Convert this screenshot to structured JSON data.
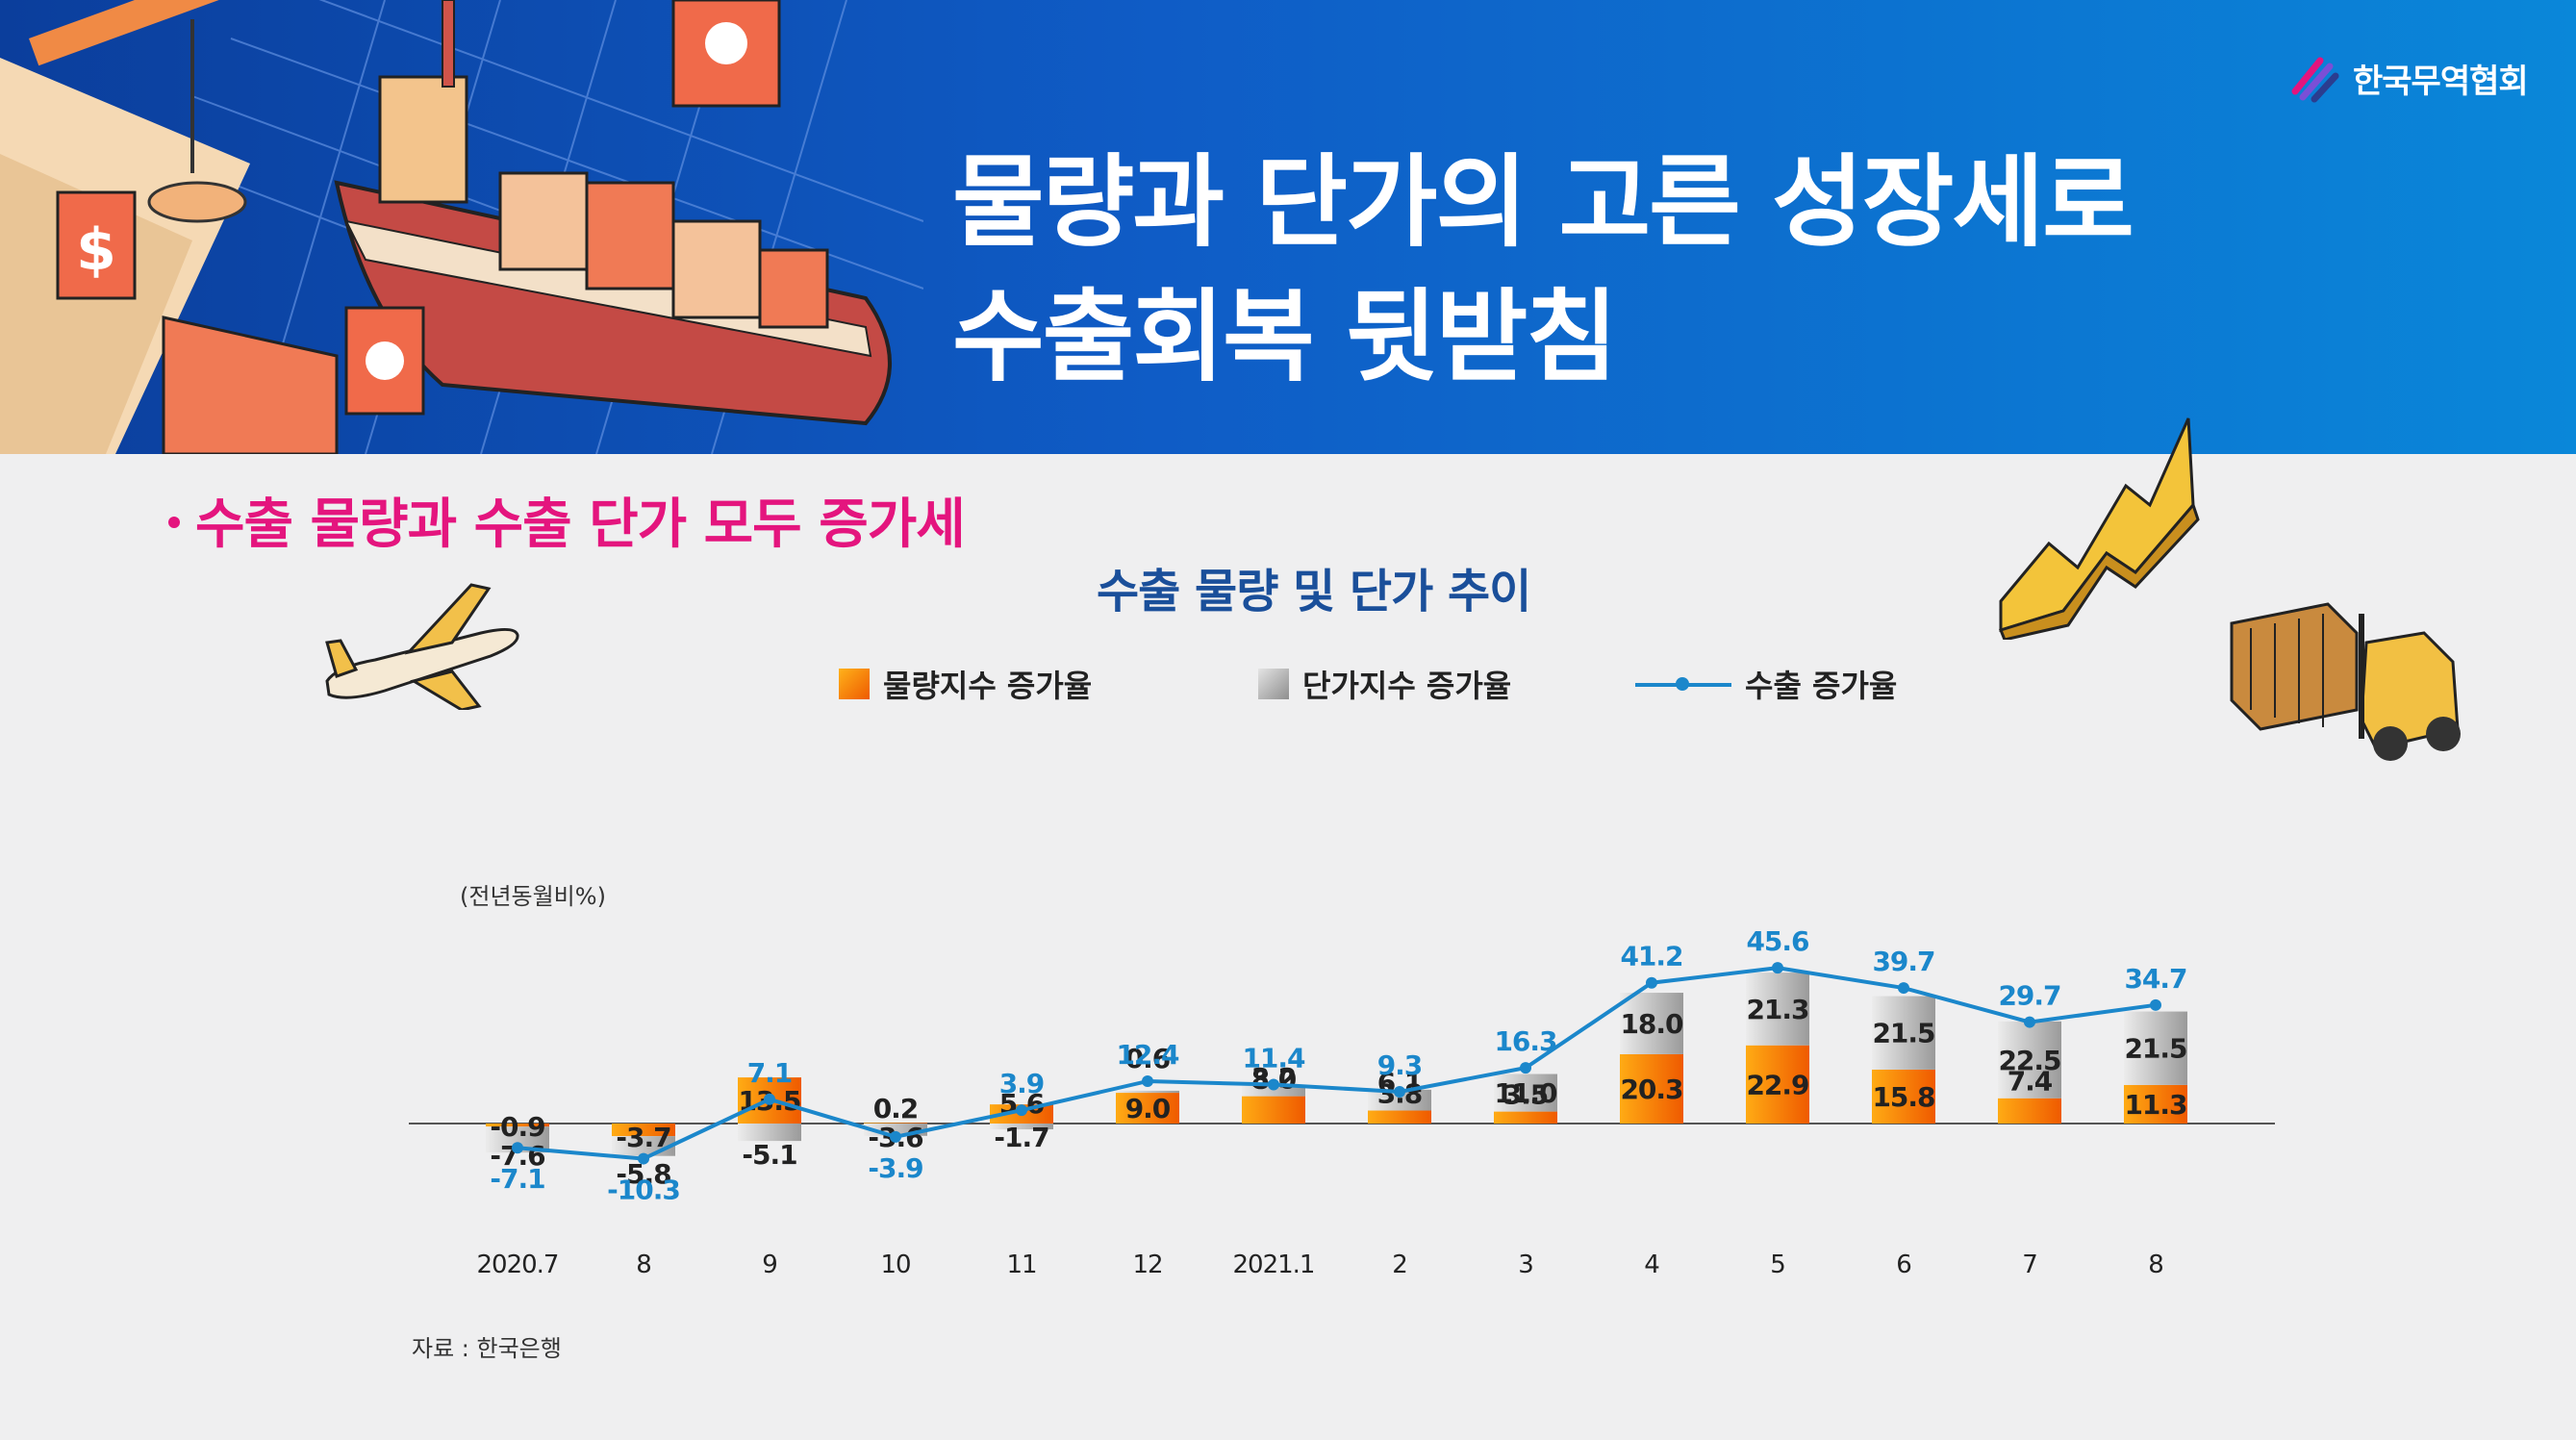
{
  "header": {
    "title_line1": "물량과 단가의 고른 성장세로",
    "title_line2": "수출회복 뒷받침",
    "logo_text": "한국무역협회",
    "bg_color": "#0f5cc6"
  },
  "subtitle": "수출 물량과 수출 단가 모두 증가세",
  "chart_data": {
    "type": "bar",
    "title": "수출 물량 및 단가 추이",
    "unit_label": "(전년동월비%)",
    "categories": [
      "2020.7",
      "8",
      "9",
      "10",
      "11",
      "12",
      "2021.1",
      "2",
      "3",
      "4",
      "5",
      "6",
      "7",
      "8"
    ],
    "series": [
      {
        "name": "물량지수 증가율",
        "kind": "bar",
        "color": "#f47a00",
        "values": [
          -0.9,
          -3.7,
          13.5,
          0.2,
          5.6,
          9.0,
          8.0,
          3.8,
          3.5,
          20.3,
          22.9,
          15.8,
          7.4,
          11.3
        ]
      },
      {
        "name": "단가지수 증가율",
        "kind": "bar",
        "color": "#a9a9a9",
        "values": [
          -7.6,
          -5.8,
          -5.1,
          -3.6,
          -1.7,
          0.6,
          3.2,
          6.1,
          11.0,
          18.0,
          21.3,
          21.5,
          22.5,
          21.5
        ]
      },
      {
        "name": "수출 증가율",
        "kind": "line",
        "color": "#1b87cb",
        "values": [
          -7.1,
          -10.3,
          7.1,
          -3.9,
          3.9,
          12.4,
          11.4,
          9.3,
          16.3,
          41.2,
          45.6,
          39.7,
          29.7,
          34.7
        ]
      }
    ],
    "stacked": true,
    "ylim": [
      -12,
      47
    ],
    "grid": false,
    "legend_position": "top-center"
  },
  "source": "자료 : 한국은행",
  "colors": {
    "accent_pink": "#e4157e",
    "title_blue": "#1a4f9a",
    "line_blue": "#1b87cb"
  },
  "icons": [
    "port-illustration",
    "airplane-icon",
    "rising-chart-icon",
    "forklift-icon",
    "logo-icon"
  ]
}
